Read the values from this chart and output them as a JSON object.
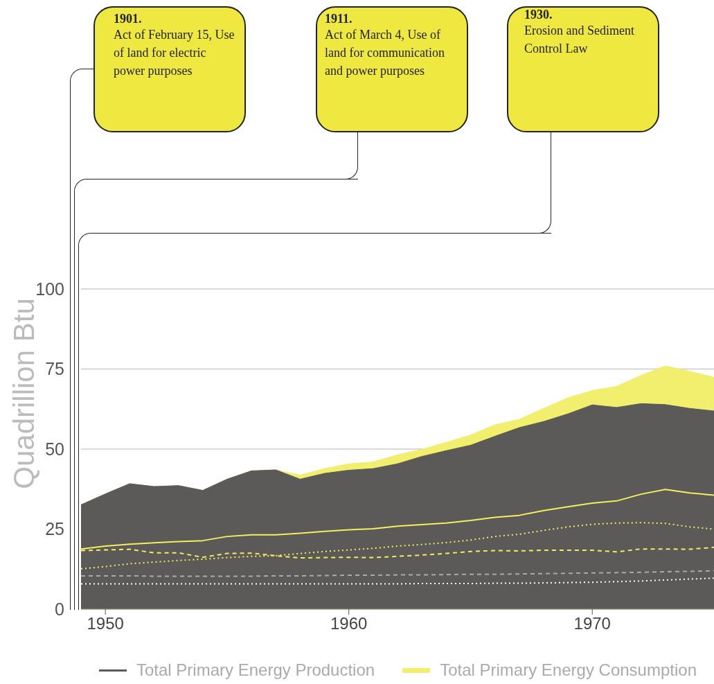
{
  "chart_data": {
    "type": "area",
    "ylabel": "Quadrillion Btu",
    "annotations": [
      "1901. Act of February 15, Use of land for electric power purposes",
      "1911. Act of March 4, Use of land for communication and power purposes",
      "1930. Erosion and Sediment Control Law"
    ],
    "x": [
      1949,
      1950,
      1951,
      1952,
      1953,
      1954,
      1955,
      1956,
      1957,
      1958,
      1959,
      1960,
      1961,
      1962,
      1963,
      1964,
      1965,
      1966,
      1967,
      1968,
      1969,
      1970,
      1971,
      1972,
      1973,
      1974,
      1975
    ],
    "series": [
      {
        "name": "Total Primary Energy Production",
        "color": "#5b5a58",
        "values": [
          32.6,
          36.0,
          39.2,
          38.3,
          38.6,
          37.1,
          40.6,
          43.2,
          43.5,
          40.6,
          42.4,
          43.4,
          43.9,
          45.4,
          47.7,
          49.5,
          51.2,
          54.0,
          56.7,
          58.6,
          61.0,
          63.8,
          63.0,
          64.2,
          63.9,
          62.7,
          61.9
        ]
      },
      {
        "name": "Total Primary Energy Consumption",
        "color": "#f2ee6e",
        "values": [
          32.6,
          36.0,
          39.2,
          38.3,
          38.6,
          37.1,
          40.6,
          43.2,
          43.5,
          41.9,
          43.9,
          45.4,
          46.0,
          48.2,
          49.9,
          52.1,
          54.4,
          57.6,
          59.3,
          62.7,
          66.0,
          68.3,
          69.6,
          73.0,
          76.0,
          74.3,
          72.4
        ]
      },
      {
        "type": "line",
        "color": "#f4ef5c",
        "line_style": "solid",
        "values": [
          18.8,
          19.7,
          20.3,
          20.7,
          21.1,
          21.4,
          22.7,
          23.2,
          23.2,
          23.7,
          24.3,
          24.8,
          25.1,
          25.9,
          26.4,
          26.9,
          27.7,
          28.7,
          29.3,
          30.8,
          32.0,
          33.1,
          33.8,
          35.9,
          37.4,
          36.3,
          35.6
        ]
      },
      {
        "type": "line",
        "color": "#f4ef5c",
        "line_style": "dotted",
        "values": [
          12.6,
          13.3,
          14.2,
          14.7,
          15.2,
          15.6,
          16.1,
          16.5,
          16.7,
          17.4,
          18.0,
          18.5,
          19.0,
          19.7,
          20.2,
          20.8,
          21.6,
          22.7,
          23.4,
          24.6,
          25.7,
          26.5,
          26.9,
          27.0,
          26.8,
          25.7,
          25.0
        ]
      },
      {
        "type": "line",
        "color": "#f4ef5c",
        "line_style": "dashed",
        "values": [
          18.3,
          18.5,
          18.7,
          17.6,
          17.6,
          16.2,
          17.4,
          17.5,
          16.7,
          16.0,
          16.1,
          16.2,
          16.1,
          16.5,
          16.9,
          17.4,
          18.0,
          18.3,
          18.2,
          18.4,
          18.4,
          18.4,
          17.9,
          18.8,
          18.8,
          18.7,
          19.3
        ]
      },
      {
        "type": "line",
        "color": "#aaaaaa",
        "line_style": "dashed",
        "values": [
          10.4,
          10.4,
          10.4,
          10.3,
          10.3,
          10.3,
          10.3,
          10.3,
          10.4,
          10.4,
          10.5,
          10.6,
          10.6,
          10.7,
          10.7,
          10.8,
          10.9,
          10.9,
          11.0,
          11.1,
          11.2,
          11.3,
          11.4,
          11.5,
          11.7,
          11.8,
          12.0
        ]
      },
      {
        "type": "line",
        "color": "#ffffff",
        "line_style": "dotted",
        "values": [
          7.9,
          7.9,
          7.9,
          7.9,
          7.9,
          7.9,
          7.9,
          7.9,
          7.9,
          7.9,
          7.9,
          7.9,
          7.9,
          7.9,
          8.0,
          8.0,
          8.0,
          8.1,
          8.1,
          8.2,
          8.3,
          8.4,
          8.6,
          8.8,
          9.1,
          9.4,
          9.7
        ]
      }
    ],
    "xlim": [
      1949,
      1975
    ],
    "xticks": [
      1950,
      1960,
      1970
    ],
    "ylim": [
      0,
      100
    ],
    "yticks": [
      0,
      25,
      50,
      75,
      100
    ],
    "grid": "y",
    "legend": "bottom"
  }
}
